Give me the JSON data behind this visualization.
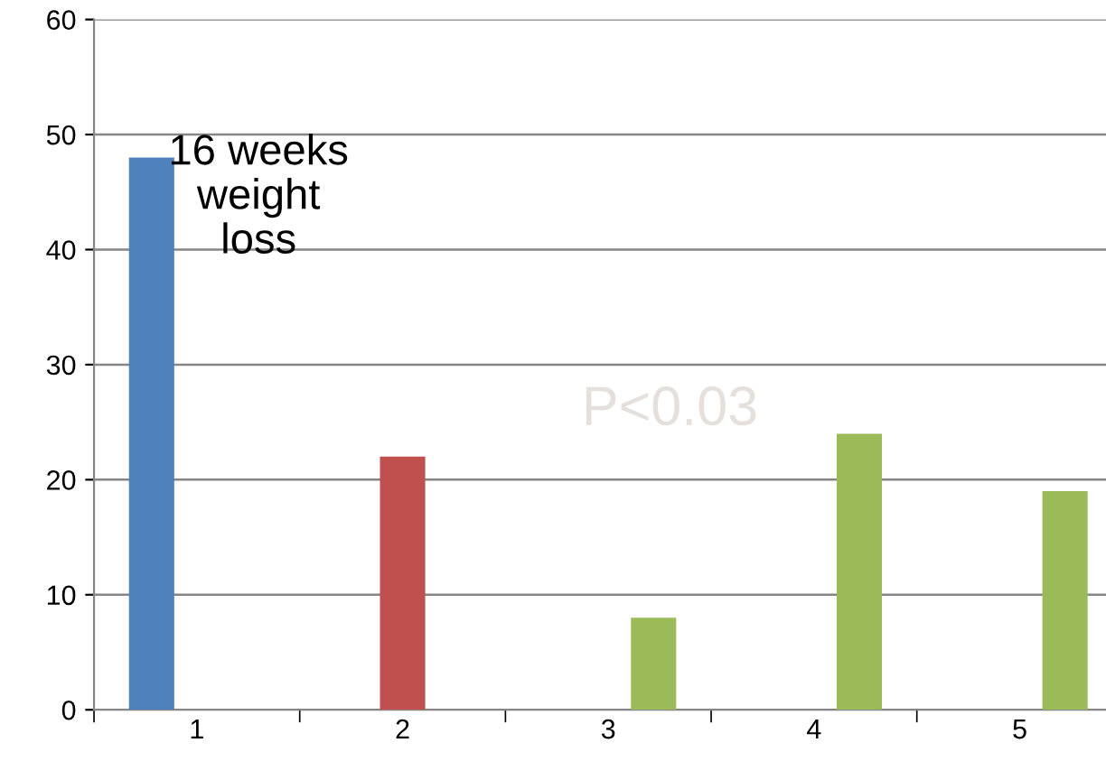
{
  "chart_data": {
    "type": "bar",
    "categories": [
      "1",
      "2",
      "3",
      "4",
      "5"
    ],
    "series": [
      {
        "color": "#4f81bd",
        "values": [
          48,
          null,
          null,
          null,
          null
        ]
      },
      {
        "color": "#c0504d",
        "values": [
          null,
          22,
          null,
          null,
          null
        ]
      },
      {
        "color": "#9bbb59",
        "values": [
          null,
          null,
          8,
          24,
          19
        ]
      }
    ],
    "ylim": [
      0,
      60
    ],
    "yticks": [
      0,
      10,
      20,
      30,
      40,
      50,
      60
    ],
    "grid": "y",
    "annotations": [
      "16 weeks\nweight\nloss",
      "P<0.03"
    ]
  }
}
